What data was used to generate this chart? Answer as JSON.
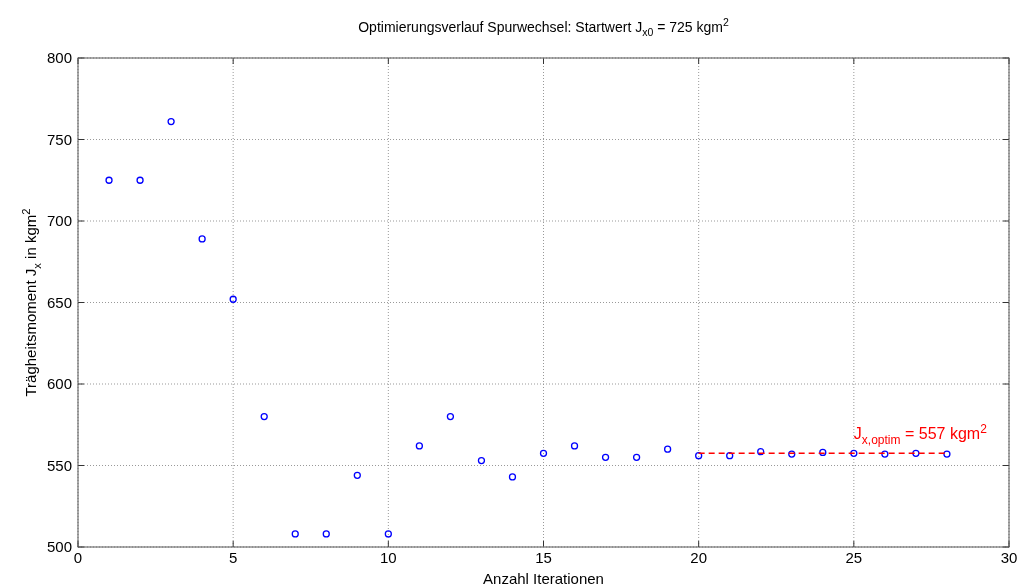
{
  "chart_data": {
    "type": "scatter",
    "title": "Optimierungsverlauf Spurwechsel: Startwert J$_{x0}$ = 725 kgm$^{2}$",
    "xlabel": "Anzahl Iterationen",
    "ylabel": "Trägheitsmoment J$_{x}$ in kgm$^{2}$",
    "xlim": [
      0,
      30
    ],
    "xticks": [
      0,
      5,
      10,
      15,
      20,
      25,
      30
    ],
    "ylim": [
      500,
      800
    ],
    "yticks": [
      500,
      550,
      600,
      650,
      700,
      750,
      800
    ],
    "grid": true,
    "marker": "circle",
    "series": [
      {
        "color": "#0000ff",
        "x": [
          1,
          2,
          3,
          4,
          5,
          6,
          7,
          8,
          9,
          10,
          11,
          12,
          13,
          14,
          15,
          16,
          17,
          18,
          19,
          20,
          21,
          22,
          23,
          24,
          25,
          26,
          27,
          28
        ],
        "values": [
          725,
          725,
          761,
          689,
          652,
          580,
          508,
          508,
          544,
          508,
          562,
          580,
          553,
          543,
          557.5,
          562,
          555,
          555,
          560,
          556,
          556,
          558.5,
          557,
          558,
          557.5,
          557,
          557.5,
          557
        ]
      },
      {
        "type": "line",
        "color": "#ff0000",
        "line_style": "dashed",
        "marker": "none",
        "x": [
          20,
          28
        ],
        "values": [
          557.5,
          557.5
        ]
      }
    ],
    "annotations": [
      {
        "text": "J$_{x,optim}$ = 557 kgm$^{2}$",
        "x": 25,
        "y": 557.5
      }
    ]
  }
}
